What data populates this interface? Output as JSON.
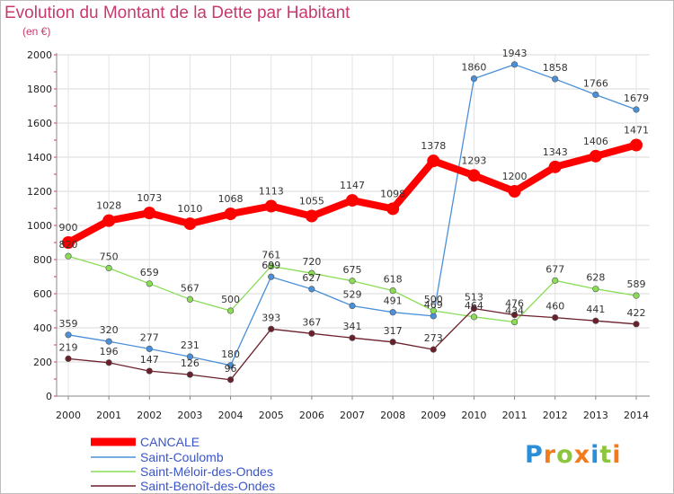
{
  "chart_data": {
    "type": "line",
    "title": "Evolution du Montant de la Dette par Habitant",
    "subtitle": "(en €)",
    "x": [
      "2000",
      "2001",
      "2002",
      "2003",
      "2004",
      "2005",
      "2006",
      "2007",
      "2008",
      "2009",
      "2010",
      "2011",
      "2012",
      "2013",
      "2014"
    ],
    "ylim": [
      0,
      2000
    ],
    "yticks": [
      0,
      200,
      400,
      600,
      800,
      1000,
      1200,
      1400,
      1600,
      1800,
      2000
    ],
    "grid": true,
    "legend_position": "bottom-left",
    "series": [
      {
        "name": "CANCALE",
        "color": "#ff0000",
        "emphasis": true,
        "values": [
          900,
          1028,
          1073,
          1010,
          1068,
          1113,
          1055,
          1147,
          1098,
          1378,
          1293,
          1200,
          1343,
          1406,
          1471
        ]
      },
      {
        "name": "Saint-Coulomb",
        "color": "#4a90d9",
        "values": [
          359,
          320,
          277,
          231,
          180,
          699,
          627,
          529,
          491,
          469,
          1860,
          1943,
          1858,
          1766,
          1679
        ]
      },
      {
        "name": "Saint-Méloir-des-Ondes",
        "color": "#88dd55",
        "values": [
          820,
          750,
          659,
          567,
          500,
          761,
          720,
          675,
          618,
          500,
          464,
          434,
          677,
          628,
          589
        ]
      },
      {
        "name": "Saint-Benoît-des-Ondes",
        "color": "#6b1f2a",
        "values": [
          219,
          196,
          147,
          126,
          96,
          393,
          367,
          341,
          317,
          273,
          513,
          476,
          460,
          441,
          422
        ]
      }
    ]
  },
  "logo": {
    "text": "Proxiti",
    "letters": [
      {
        "ch": "P",
        "color": "#2a8fd8"
      },
      {
        "ch": "r",
        "color": "#f07c1e"
      },
      {
        "ch": "o",
        "color": "#8cc63e"
      },
      {
        "ch": "x",
        "color": "#f07c1e"
      },
      {
        "ch": "i",
        "color": "#2a8fd8"
      },
      {
        "ch": "t",
        "color": "#8cc63e"
      },
      {
        "ch": "i",
        "color": "#f07c1e"
      }
    ]
  }
}
